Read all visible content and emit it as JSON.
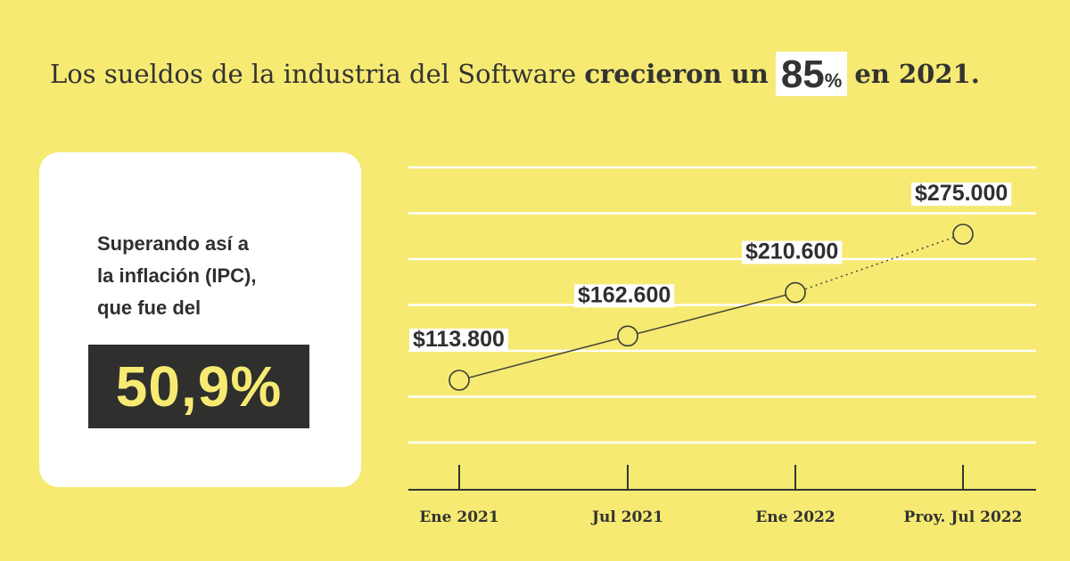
{
  "headline": {
    "prefix": "Los sueldos de la industria del Software ",
    "bold": "crecieron un",
    "pct_number": "85",
    "pct_symbol": "%",
    "suffix": "en 2021."
  },
  "card": {
    "line1": "Superando así a",
    "line2": "la inflación (IPC),",
    "line3": "que fue del",
    "value": "50,9%"
  },
  "chart_data": {
    "type": "line",
    "categories": [
      "Ene 2021",
      "Jul 2021",
      "Ene 2022",
      "Proy. Jul 2022"
    ],
    "values": [
      113800,
      162600,
      210600,
      275000
    ],
    "value_labels": [
      "$113.800",
      "$162.600",
      "$210.600",
      "$275.000"
    ],
    "projected_from_index": 2,
    "grid": true,
    "colors": {
      "background": "#f6ea72",
      "line": "#4a4a3a",
      "grid": "#ffffff"
    }
  }
}
